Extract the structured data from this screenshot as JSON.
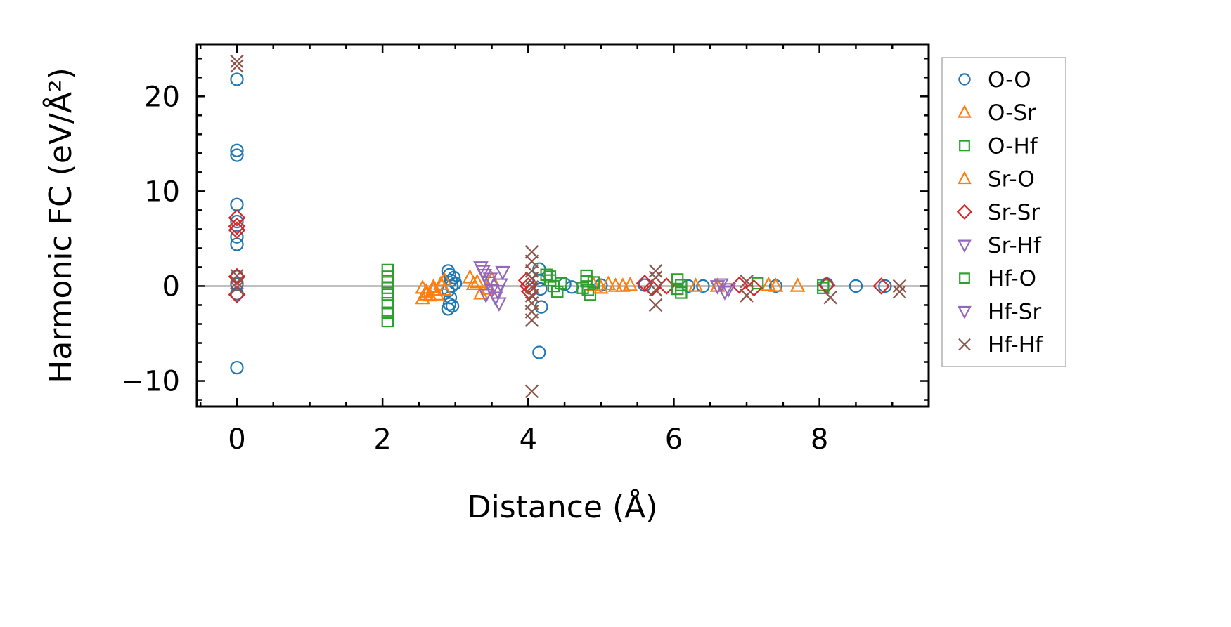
{
  "chart_data": {
    "type": "scatter",
    "title": "",
    "xlabel": "Distance (Å)",
    "ylabel": "Harmonic FC (eV/Å²)",
    "xlim": [
      -0.55,
      9.5
    ],
    "ylim": [
      -12.7,
      25.5
    ],
    "xticks": [
      0,
      2,
      4,
      6,
      8
    ],
    "yticks": [
      -10,
      0,
      10,
      20
    ],
    "xtick_labels": [
      "0",
      "2",
      "4",
      "6",
      "8"
    ],
    "ytick_labels": [
      "−10",
      "0",
      "10",
      "20"
    ],
    "grid": false,
    "zero_line": true,
    "legend_position": "outside-right",
    "series": [
      {
        "name": "O-O",
        "marker": "circle",
        "color": "#1f77b4",
        "points": [
          [
            0,
            21.8
          ],
          [
            0,
            14.3
          ],
          [
            0,
            13.8
          ],
          [
            0,
            8.6
          ],
          [
            0,
            6.8
          ],
          [
            0,
            5.2
          ],
          [
            0,
            4.4
          ],
          [
            0,
            1.0
          ],
          [
            0,
            0.2
          ],
          [
            0,
            -0.8
          ],
          [
            0,
            -8.6
          ],
          [
            2.9,
            1.6
          ],
          [
            2.92,
            1.2
          ],
          [
            2.94,
            0.6
          ],
          [
            2.95,
            0.0
          ],
          [
            2.9,
            -0.5
          ],
          [
            2.93,
            -1.2
          ],
          [
            2.92,
            -1.9
          ],
          [
            2.9,
            -2.4
          ],
          [
            2.96,
            -2.1
          ],
          [
            2.98,
            0.9
          ],
          [
            3.0,
            0.3
          ],
          [
            4.15,
            1.8
          ],
          [
            4.15,
            0.6
          ],
          [
            4.17,
            -0.3
          ],
          [
            4.18,
            -2.2
          ],
          [
            4.15,
            -7.0
          ],
          [
            4.5,
            0.2
          ],
          [
            4.6,
            -0.1
          ],
          [
            5.0,
            0.1
          ],
          [
            5.6,
            0.1
          ],
          [
            6.2,
            0.0
          ],
          [
            6.4,
            0.0
          ],
          [
            7.4,
            0.0
          ],
          [
            8.1,
            0.2
          ],
          [
            8.5,
            0.0
          ],
          [
            8.9,
            0.0
          ]
        ]
      },
      {
        "name": "O-Sr",
        "marker": "triangle-up",
        "color": "#ff7f0e",
        "points": [
          [
            2.55,
            -0.2
          ],
          [
            2.6,
            -0.6
          ],
          [
            2.65,
            -1.0
          ],
          [
            2.7,
            -0.4
          ],
          [
            2.75,
            -0.9
          ],
          [
            2.8,
            0.2
          ],
          [
            2.85,
            0.6
          ],
          [
            3.2,
            0.9
          ],
          [
            3.3,
            0.4
          ],
          [
            3.45,
            -0.3
          ],
          [
            4.9,
            0.1
          ],
          [
            5.1,
            0.2
          ],
          [
            5.3,
            0.0
          ],
          [
            6.3,
            0.0
          ],
          [
            6.6,
            0.0
          ],
          [
            7.3,
            0.1
          ]
        ]
      },
      {
        "name": "O-Hf",
        "marker": "square",
        "color": "#2ca02c",
        "points": [
          [
            2.07,
            1.7
          ],
          [
            2.07,
            1.0
          ],
          [
            2.07,
            0.4
          ],
          [
            2.07,
            -0.2
          ],
          [
            2.07,
            -0.9
          ],
          [
            2.07,
            -1.8
          ],
          [
            2.07,
            -2.8
          ],
          [
            2.07,
            -3.7
          ],
          [
            4.25,
            1.2
          ],
          [
            4.3,
            0.6
          ],
          [
            4.35,
            0.0
          ],
          [
            4.4,
            -0.6
          ],
          [
            4.8,
            1.1
          ],
          [
            4.8,
            0.5
          ],
          [
            4.82,
            -0.4
          ],
          [
            4.85,
            -0.9
          ],
          [
            6.05,
            0.7
          ],
          [
            6.1,
            0.1
          ],
          [
            6.1,
            -0.7
          ],
          [
            7.15,
            0.3
          ],
          [
            8.05,
            0.1
          ]
        ]
      },
      {
        "name": "Sr-O",
        "marker": "triangle-up",
        "color": "#ff7f0e",
        "points": [
          [
            2.55,
            -1.3
          ],
          [
            2.6,
            -0.9
          ],
          [
            2.7,
            -0.1
          ],
          [
            2.85,
            -0.4
          ],
          [
            3.25,
            0.2
          ],
          [
            3.35,
            -0.8
          ],
          [
            3.5,
            0.7
          ],
          [
            5.0,
            -0.2
          ],
          [
            5.2,
            0.0
          ],
          [
            5.4,
            0.1
          ],
          [
            7.7,
            0.0
          ],
          [
            7.4,
            0.0
          ]
        ]
      },
      {
        "name": "Sr-Sr",
        "marker": "diamond",
        "color": "#d62728",
        "points": [
          [
            0,
            7.2
          ],
          [
            0,
            6.3
          ],
          [
            0,
            5.9
          ],
          [
            0,
            1.0
          ],
          [
            0,
            -0.9
          ],
          [
            3.98,
            0.6
          ],
          [
            4.0,
            0.0
          ],
          [
            4.02,
            -0.6
          ],
          [
            5.6,
            0.3
          ],
          [
            5.7,
            -0.2
          ],
          [
            5.9,
            0.0
          ],
          [
            6.9,
            0.1
          ],
          [
            7.1,
            -0.2
          ],
          [
            8.1,
            0.1
          ],
          [
            8.85,
            0.0
          ]
        ]
      },
      {
        "name": "Sr-Hf",
        "marker": "triangle-down",
        "color": "#9467bd",
        "points": [
          [
            3.35,
            2.0
          ],
          [
            3.4,
            1.2
          ],
          [
            3.45,
            0.4
          ],
          [
            3.5,
            -0.4
          ],
          [
            3.55,
            -1.2
          ],
          [
            3.6,
            -1.8
          ],
          [
            3.65,
            1.5
          ],
          [
            3.42,
            -0.9
          ],
          [
            6.65,
            0.2
          ],
          [
            6.75,
            -0.3
          ]
        ]
      },
      {
        "name": "Hf-O",
        "marker": "square",
        "color": "#2ca02c",
        "points": [
          [
            4.3,
            1.0
          ],
          [
            4.45,
            0.3
          ],
          [
            4.75,
            -0.2
          ],
          [
            4.9,
            0.4
          ],
          [
            6.05,
            -0.3
          ],
          [
            8.05,
            -0.2
          ]
        ]
      },
      {
        "name": "Hf-Sr",
        "marker": "triangle-down",
        "color": "#9467bd",
        "points": [
          [
            3.38,
            1.6
          ],
          [
            3.48,
            0.8
          ],
          [
            3.58,
            -0.5
          ],
          [
            3.62,
            0.2
          ],
          [
            6.6,
            0.0
          ],
          [
            6.7,
            -0.6
          ]
        ]
      },
      {
        "name": "Hf-Hf",
        "marker": "x",
        "color": "#8c564b",
        "points": [
          [
            0,
            23.7
          ],
          [
            0,
            23.2
          ],
          [
            0,
            1.1
          ],
          [
            0,
            0.4
          ],
          [
            0,
            -0.2
          ],
          [
            4.05,
            3.6
          ],
          [
            4.05,
            2.6
          ],
          [
            4.05,
            1.6
          ],
          [
            4.05,
            0.8
          ],
          [
            4.05,
            -0.1
          ],
          [
            4.05,
            -1.0
          ],
          [
            4.05,
            -1.8
          ],
          [
            4.05,
            -2.7
          ],
          [
            4.05,
            -3.6
          ],
          [
            4.05,
            -11.1
          ],
          [
            5.75,
            1.6
          ],
          [
            5.75,
            0.9
          ],
          [
            5.75,
            -0.4
          ],
          [
            5.75,
            -2.0
          ],
          [
            7.0,
            0.5
          ],
          [
            7.0,
            -1.0
          ],
          [
            8.15,
            -1.2
          ],
          [
            9.1,
            0.0
          ],
          [
            9.1,
            -0.6
          ]
        ]
      }
    ]
  }
}
